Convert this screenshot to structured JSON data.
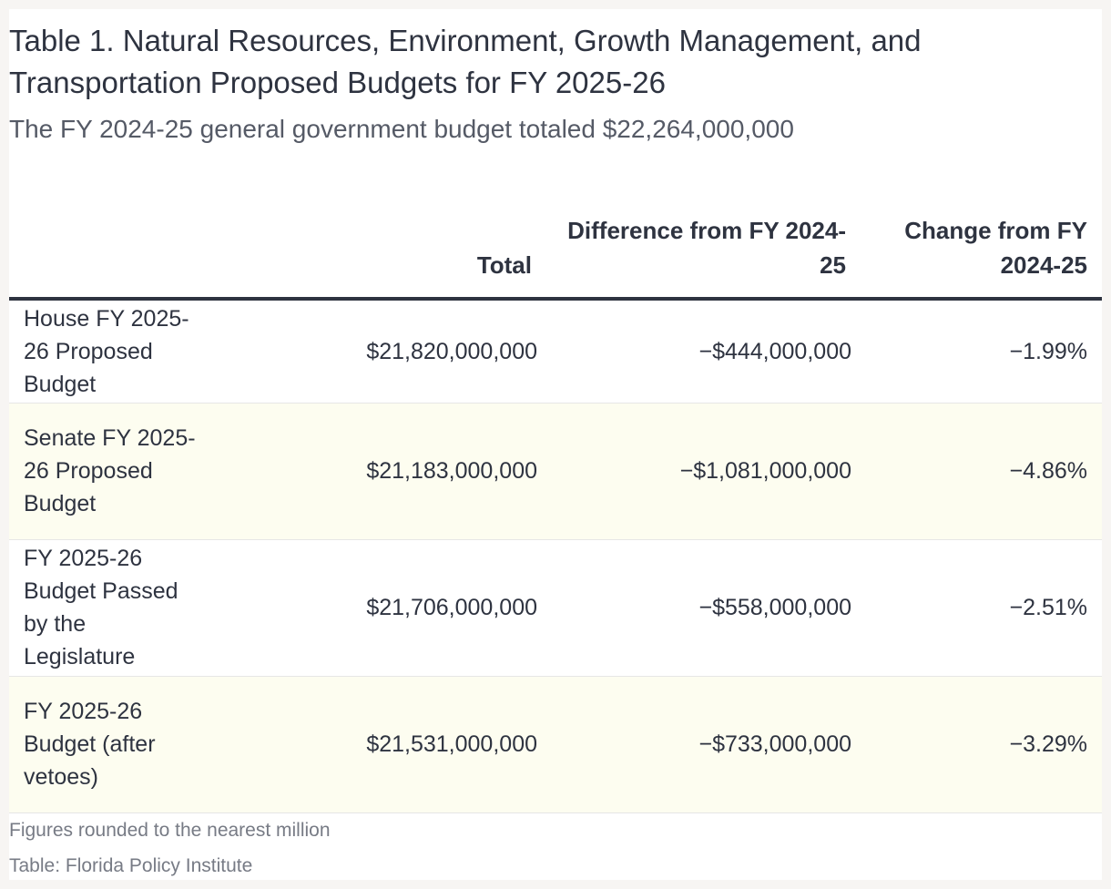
{
  "chart_data": {
    "type": "table",
    "title": "Table 1.  Natural Resources, Environment, Growth Management, and Transportation Proposed Budgets for FY 2025-26",
    "subtitle": "The FY 2024-25 general government budget totaled $22,264,000,000",
    "columns": [
      "",
      "Total",
      "Difference from FY 2024-25",
      "Change from FY 2024-25"
    ],
    "rows": [
      {
        "label": "House FY 2025-26 Proposed Budget",
        "total": "$21,820,000,000",
        "difference": "−$444,000,000",
        "change": "−1.99%"
      },
      {
        "label": "Senate FY 2025-26 Proposed Budget",
        "total": "$21,183,000,000",
        "difference": "−$1,081,000,000",
        "change": "−4.86%"
      },
      {
        "label": "FY 2025-26 Budget Passed by the Legislature",
        "total": "$21,706,000,000",
        "difference": "−$558,000,000",
        "change": "−2.51%"
      },
      {
        "label": "FY 2025-26 Budget (after vetoes)",
        "total": "$21,531,000,000",
        "difference": "−$733,000,000",
        "change": "−3.29%"
      }
    ],
    "notes": "Figures rounded to the nearest million",
    "source": "Table: Florida Policy Institute",
    "colors": {
      "text": "#2e3340",
      "alt_row": "#fdfdf0",
      "header_rule": "#2e3340"
    }
  }
}
